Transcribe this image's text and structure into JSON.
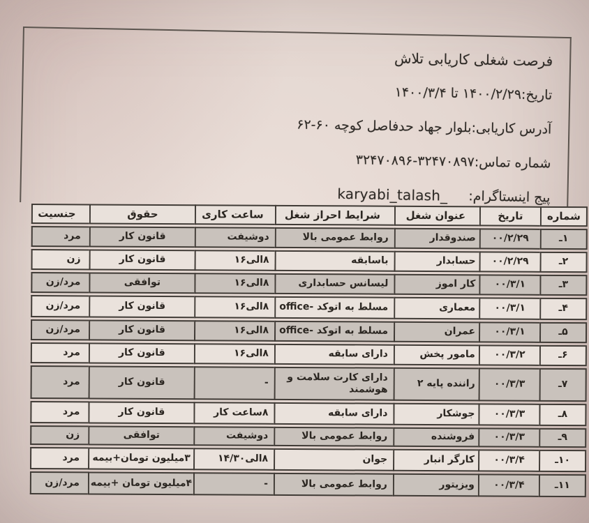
{
  "letterhead": {
    "title": "فرصت شغلی کاریابی تلاش",
    "date_line": "تاریخ:۱۴۰۰/۲/۲۹ تا ۱۴۰۰/۳/۴",
    "address_line": "آدرس کاریابی:بلوار جهاد حدفاصل کوچه ۶۰-۶۲",
    "phone_line": "شماره تماس:۳۲۴۷۰۸۹۷-۳۲۴۷۰۸۹۶",
    "instagram_label": "پیج اینستاگرام:",
    "instagram_handle": "_karyabi_talash"
  },
  "table": {
    "columns": [
      "شماره",
      "تاریخ",
      "عنوان شغل",
      "شرایط احراز شغل",
      "ساعت کاری",
      "حقوق",
      "جنسیت"
    ],
    "rows": [
      {
        "no": "۱ـ",
        "date": "۰۰/۲/۲۹",
        "title": "صندوقدار",
        "req": "روابط عمومی بالا",
        "hours": "دوشیفت",
        "salary": "قانون کار",
        "gender": "مرد"
      },
      {
        "no": "۲ـ",
        "date": "۰۰/۲/۲۹",
        "title": "حسابدار",
        "req": "باسابقه",
        "hours": "۸الی۱۶",
        "salary": "قانون کار",
        "gender": "زن"
      },
      {
        "no": "۳ـ",
        "date": "۰۰/۳/۱",
        "title": "کار اموز",
        "req": "لیسانس حسابداری",
        "hours": "۸الی۱۶",
        "salary": "توافقی",
        "gender": "مرد/زن"
      },
      {
        "no": "۴ـ",
        "date": "۰۰/۳/۱",
        "title": "معماری",
        "req": "مسلط به اتوکد -office",
        "hours": "۸الی۱۶",
        "salary": "قانون کار",
        "gender": "مرد/زن"
      },
      {
        "no": "۵ـ",
        "date": "۰۰/۳/۱",
        "title": "عمران",
        "req": "مسلط به اتوکد -office",
        "hours": "۸الی۱۶",
        "salary": "قانون کار",
        "gender": "مرد/زن"
      },
      {
        "no": "۶ـ",
        "date": "۰۰/۳/۲",
        "title": "مامور پخش",
        "req": "دارای سابقه",
        "hours": "۸الی۱۶",
        "salary": "قانون کار",
        "gender": "مرد"
      },
      {
        "no": "۷ـ",
        "date": "۰۰/۳/۳",
        "title": "راننده پایه ۲",
        "req": "دارای کارت سلامت و هوشمند",
        "hours": "-",
        "salary": "قانون کار",
        "gender": "مرد"
      },
      {
        "no": "۸ـ",
        "date": "۰۰/۳/۳",
        "title": "جوشکار",
        "req": "دارای سابقه",
        "hours": "۸ساعت کار",
        "salary": "قانون کار",
        "gender": "مرد"
      },
      {
        "no": "۹ـ",
        "date": "۰۰/۳/۳",
        "title": "فروشنده",
        "req": "روابط عمومی بالا",
        "hours": "دوشیفت",
        "salary": "توافقی",
        "gender": "زن"
      },
      {
        "no": "۱۰ـ",
        "date": "۰۰/۳/۴",
        "title": "کارگر انبار",
        "req": "جوان",
        "hours": "۸الی۱۴/۳۰",
        "salary": "۳میلیون تومان+بیمه",
        "gender": "مرد"
      },
      {
        "no": "۱۱ـ",
        "date": "۰۰/۳/۴",
        "title": "ویزیتور",
        "req": "روابط عمومی بالا",
        "hours": "-",
        "salary": "۴میلیون تومان +بیمه",
        "gender": "مرد/زن"
      }
    ]
  },
  "colors": {
    "paper": "#e4d7d1",
    "row_shaded": "#c9c2bc",
    "row_light": "#eae2dc",
    "ink": "#2b2621",
    "border": "#403b36"
  }
}
